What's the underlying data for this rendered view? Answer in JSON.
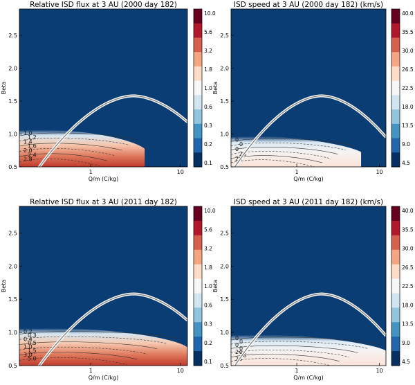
{
  "chart_data": [
    {
      "type": "heatmap",
      "title": "Relative ISD flux at 3 AU (2000 day 182)",
      "xlabel": "Q/m (C/kg)",
      "ylabel": "Beta",
      "x_scale": "log",
      "xlim": [
        0.16,
        12.0
      ],
      "ylim": [
        0.5,
        2.9
      ],
      "x_ticks": [
        {
          "value": 1,
          "label": "1"
        },
        {
          "value": 10,
          "label": "10"
        }
      ],
      "y_ticks": [
        0.5,
        1.0,
        1.5,
        2.0,
        2.5
      ],
      "colorbar": {
        "labels": [
          "10.0",
          "5.6",
          "3.2",
          "1.8",
          "1.0",
          "0.6",
          "0.3",
          "0.2",
          "0.1"
        ],
        "colors": [
          "#67001f",
          "#b2182b",
          "#d6604d",
          "#f4a582",
          "#fddbc7",
          "#f7f7f7",
          "#d1e5f0",
          "#92c5de",
          "#4393c3",
          "#2166ac",
          "#053061"
        ]
      },
      "background": "#0b3d75",
      "contour_labels": [
        "1.0",
        "1.2",
        "1.4",
        "1.6",
        "2.0",
        "2.4",
        "2.8"
      ],
      "curve": {
        "name": "Beta peak",
        "x_peak": 3.0,
        "y_peak": 1.58
      },
      "hot_region": {
        "x_max": 4.0,
        "y_max": 1.05
      }
    },
    {
      "type": "heatmap",
      "title": "ISD speed at 3 AU (2000 day 182) (km/s)",
      "xlabel": "Q/m (C/kg)",
      "ylabel": "Beta",
      "x_scale": "log",
      "xlim": [
        0.16,
        12.0
      ],
      "ylim": [
        0.5,
        2.9
      ],
      "x_ticks": [
        {
          "value": 1,
          "label": "1"
        },
        {
          "value": 10,
          "label": "10"
        }
      ],
      "y_ticks": [
        0.5,
        1.0,
        1.5,
        2.0,
        2.5
      ],
      "colorbar": {
        "labels": [
          "40.0",
          "35.5",
          "30.0",
          "26.5",
          "22.5",
          "18.0",
          "13.5",
          "9.0",
          "4.5"
        ],
        "colors": [
          "#67001f",
          "#b2182b",
          "#d6604d",
          "#f4a582",
          "#fddbc7",
          "#f7f7f7",
          "#d1e5f0",
          "#92c5de",
          "#4393c3",
          "#2166ac",
          "#053061"
        ]
      },
      "background": "#0b3d75",
      "contour_labels": [
        "0",
        "0",
        "0",
        "26",
        "26"
      ],
      "curve": {
        "name": "Beta peak",
        "x_peak": 2.0,
        "y_peak": 1.58
      },
      "hot_region": {
        "x_max": 6.0,
        "y_max": 0.95
      }
    },
    {
      "type": "heatmap",
      "title": "Relative ISD flux at 3 AU (2011 day 182)",
      "xlabel": "Q/m (C/kg)",
      "ylabel": "Beta",
      "x_scale": "log",
      "xlim": [
        0.16,
        12.0
      ],
      "ylim": [
        0.5,
        2.9
      ],
      "x_ticks": [
        {
          "value": 1,
          "label": "1"
        },
        {
          "value": 10,
          "label": "10"
        }
      ],
      "y_ticks": [
        0.5,
        1.0,
        1.5,
        2.0,
        2.5
      ],
      "colorbar": {
        "labels": [
          "10.0",
          "5.6",
          "3.2",
          "1.8",
          "1.0",
          "0.6",
          "0.3",
          "0.2",
          "0.1"
        ],
        "colors": [
          "#67001f",
          "#b2182b",
          "#d6604d",
          "#f4a582",
          "#fddbc7",
          "#f7f7f7",
          "#d1e5f0",
          "#92c5de",
          "#4393c3",
          "#2166ac",
          "#053061"
        ]
      },
      "background": "#0b3d75",
      "contour_labels": [
        "0.2",
        "0.3",
        "0.4",
        "0.5",
        "1.0",
        "1.5",
        "3.0",
        "5.0"
      ],
      "curve": {
        "name": "Beta peak",
        "x_peak": 3.0,
        "y_peak": 1.58
      },
      "hot_region": {
        "x_max": 12.0,
        "y_max": 1.05
      }
    },
    {
      "type": "heatmap",
      "title": "ISD speed at 3 AU (2011 day 182) (km/s)",
      "xlabel": "Q/m (C/kg)",
      "ylabel": "Beta",
      "x_scale": "log",
      "xlim": [
        0.16,
        12.0
      ],
      "ylim": [
        0.5,
        2.9
      ],
      "x_ticks": [
        {
          "value": 1,
          "label": "1"
        },
        {
          "value": 10,
          "label": "10"
        }
      ],
      "y_ticks": [
        0.5,
        1.0,
        1.5,
        2.0,
        2.5
      ],
      "colorbar": {
        "labels": [
          "40.0",
          "35.5",
          "30.0",
          "26.5",
          "22.5",
          "18.0",
          "13.5",
          "9.0",
          "4.5"
        ],
        "colors": [
          "#67001f",
          "#b2182b",
          "#d6604d",
          "#f4a582",
          "#fddbc7",
          "#f7f7f7",
          "#d1e5f0",
          "#92c5de",
          "#4393c3",
          "#2166ac",
          "#053061"
        ]
      },
      "background": "#0b3d75",
      "contour_labels": [
        "0",
        "0",
        "0",
        "0",
        "24",
        "26",
        "28"
      ],
      "curve": {
        "name": "Beta peak",
        "x_peak": 2.0,
        "y_peak": 1.58
      },
      "hot_region": {
        "x_max": 12.0,
        "y_max": 0.95
      }
    }
  ]
}
